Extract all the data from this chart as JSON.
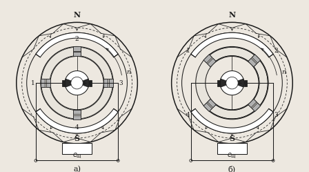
{
  "bg_color": "#ede8e0",
  "line_color": "#1a1a1a",
  "label_a": "а)",
  "label_b": "б)",
  "label_N": "N",
  "label_S": "S",
  "label_n": "n",
  "label_minus": "-",
  "label_plus": "+",
  "fig_width": 4.48,
  "fig_height": 2.49,
  "r_outer1": 1.0,
  "r_outer2": 0.91,
  "r_outer3": 0.83,
  "r_pole": 0.74,
  "r_arm_outer": 0.6,
  "r_arm_inner": 0.44,
  "r_comm": 0.2,
  "r_shaft": 0.1,
  "pole_span_deg": 110,
  "n_zigzag": 5
}
